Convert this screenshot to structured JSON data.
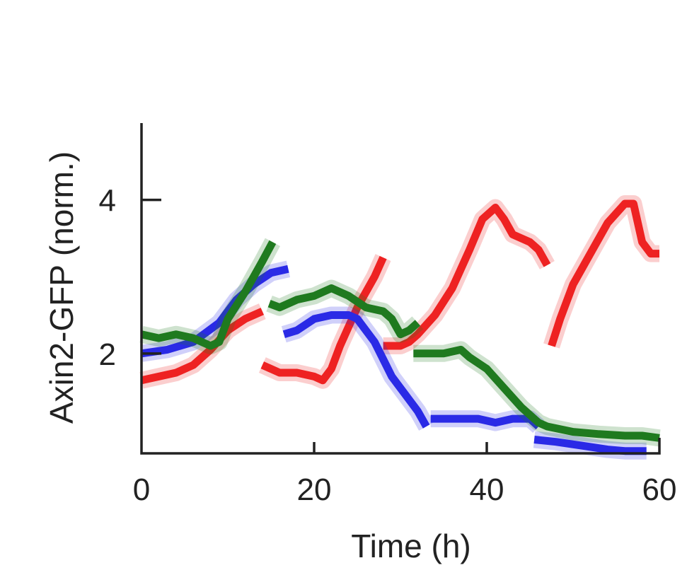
{
  "chart_data": {
    "type": "line",
    "title": "",
    "xlabel": "Time (h)",
    "ylabel": "Axin2-GFP (norm.)",
    "xlim": [
      0,
      60
    ],
    "ylim": [
      0.7,
      5
    ],
    "x_ticks": [
      0,
      20,
      40,
      60
    ],
    "x_tick_labels": [
      "0",
      "20",
      "40",
      "60"
    ],
    "y_ticks": [
      2,
      4
    ],
    "y_tick_labels": [
      "2",
      "4"
    ],
    "colors": {
      "red": "#ee2222",
      "blue": "#2a2ae6",
      "green": "#1f7a1f"
    },
    "series": [
      {
        "name": "red",
        "color": "#ee2222",
        "segments": [
          [
            [
              0,
              1.65
            ],
            [
              2,
              1.7
            ],
            [
              4,
              1.75
            ],
            [
              6,
              1.85
            ],
            [
              8,
              2.05
            ],
            [
              10,
              2.3
            ],
            [
              12,
              2.45
            ],
            [
              14,
              2.55
            ]
          ],
          [
            [
              14,
              1.85
            ],
            [
              16,
              1.75
            ],
            [
              18,
              1.75
            ],
            [
              20,
              1.7
            ],
            [
              21,
              1.65
            ],
            [
              22,
              1.8
            ],
            [
              23,
              2.1
            ],
            [
              24,
              2.35
            ],
            [
              25,
              2.6
            ],
            [
              26,
              2.8
            ],
            [
              27,
              3.0
            ],
            [
              28,
              3.25
            ]
          ],
          [
            [
              28,
              2.1
            ],
            [
              30,
              2.1
            ],
            [
              31,
              2.15
            ],
            [
              32,
              2.25
            ],
            [
              34,
              2.5
            ],
            [
              36,
              2.85
            ],
            [
              38,
              3.35
            ],
            [
              39.5,
              3.75
            ],
            [
              41,
              3.9
            ],
            [
              42,
              3.75
            ],
            [
              43,
              3.55
            ],
            [
              45,
              3.45
            ],
            [
              46,
              3.35
            ],
            [
              47,
              3.15
            ]
          ],
          [
            [
              47.5,
              2.1
            ],
            [
              48.5,
              2.45
            ],
            [
              50,
              2.9
            ],
            [
              52,
              3.3
            ],
            [
              54,
              3.7
            ],
            [
              56,
              3.95
            ],
            [
              57,
              3.95
            ],
            [
              58,
              3.45
            ],
            [
              59,
              3.3
            ],
            [
              60,
              3.3
            ]
          ]
        ]
      },
      {
        "name": "blue",
        "color": "#2a2ae6",
        "segments": [
          [
            [
              0,
              2.0
            ],
            [
              3,
              2.05
            ],
            [
              6,
              2.15
            ],
            [
              9,
              2.4
            ],
            [
              11,
              2.7
            ],
            [
              13,
              2.9
            ],
            [
              15,
              3.05
            ],
            [
              17,
              3.1
            ]
          ],
          [
            [
              16.5,
              2.25
            ],
            [
              18,
              2.3
            ],
            [
              20,
              2.45
            ],
            [
              22,
              2.5
            ],
            [
              24,
              2.5
            ],
            [
              25,
              2.45
            ],
            [
              27,
              2.15
            ],
            [
              29,
              1.7
            ],
            [
              31,
              1.4
            ],
            [
              32,
              1.25
            ],
            [
              33,
              1.05
            ]
          ],
          [
            [
              33.5,
              1.15
            ],
            [
              35,
              1.15
            ],
            [
              37,
              1.15
            ],
            [
              39,
              1.15
            ],
            [
              41,
              1.1
            ],
            [
              43,
              1.15
            ],
            [
              45,
              1.15
            ],
            [
              46,
              1.05
            ]
          ],
          [
            [
              45.5,
              0.88
            ],
            [
              48,
              0.85
            ],
            [
              51,
              0.8
            ],
            [
              54,
              0.75
            ],
            [
              56,
              0.73
            ],
            [
              58.5,
              0.73
            ]
          ]
        ]
      },
      {
        "name": "green",
        "color": "#1f7a1f",
        "segments": [
          [
            [
              0,
              2.25
            ],
            [
              2,
              2.2
            ],
            [
              4,
              2.25
            ],
            [
              6,
              2.2
            ],
            [
              8,
              2.1
            ],
            [
              9,
              2.15
            ],
            [
              10,
              2.45
            ],
            [
              12,
              2.8
            ],
            [
              14,
              3.2
            ],
            [
              15.2,
              3.45
            ]
          ],
          [
            [
              14.8,
              2.65
            ],
            [
              16,
              2.6
            ],
            [
              18,
              2.7
            ],
            [
              20,
              2.75
            ],
            [
              22,
              2.85
            ],
            [
              24,
              2.75
            ],
            [
              26,
              2.6
            ],
            [
              28,
              2.55
            ],
            [
              29,
              2.45
            ],
            [
              30,
              2.25
            ],
            [
              31,
              2.3
            ],
            [
              32,
              2.4
            ]
          ],
          [
            [
              31.5,
              2.0
            ],
            [
              33,
              2.0
            ],
            [
              35,
              2.0
            ],
            [
              37,
              2.05
            ],
            [
              38,
              1.95
            ],
            [
              40,
              1.8
            ],
            [
              42,
              1.55
            ],
            [
              44,
              1.3
            ],
            [
              45,
              1.2
            ],
            [
              46,
              1.1
            ],
            [
              47,
              1.05
            ],
            [
              50,
              0.98
            ],
            [
              53,
              0.95
            ],
            [
              56,
              0.93
            ],
            [
              58,
              0.93
            ],
            [
              60,
              0.9
            ]
          ]
        ]
      }
    ]
  }
}
